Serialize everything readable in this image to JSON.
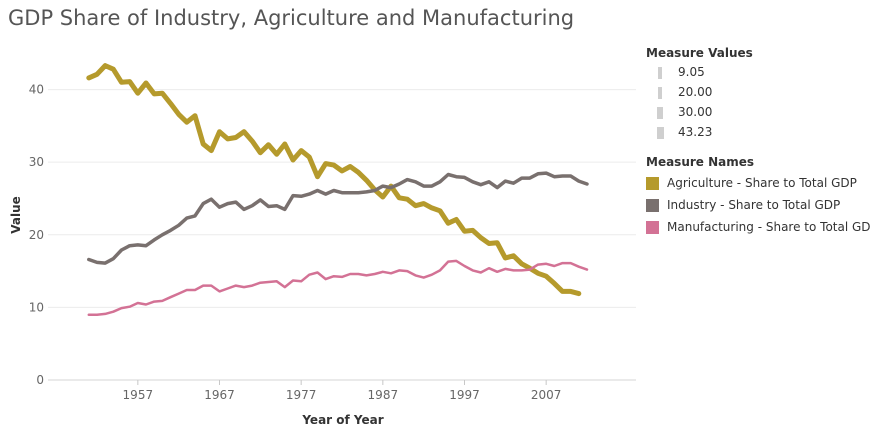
{
  "title": "GDP Share of Industry, Agriculture and Manufacturing",
  "colors": {
    "agriculture": "#b59a2c",
    "industry": "#79706e",
    "manufacturing": "#d37295",
    "axis_text": "#666666",
    "grid": "#ececec"
  },
  "legend_values": {
    "title": "Measure Values",
    "items": [
      "9.05",
      "20.00",
      "30.00",
      "43.23"
    ],
    "levels": [
      9.05,
      20.0,
      30.0,
      43.23
    ]
  },
  "legend_names": {
    "title": "Measure Names",
    "items": [
      {
        "label": "Agriculture - Share to Total GDP",
        "color": "#b59a2c"
      },
      {
        "label": "Industry - Share to Total GDP",
        "color": "#79706e"
      },
      {
        "label": "Manufacturing - Share to Total GDP",
        "color": "#d37295"
      }
    ]
  },
  "chart_data": {
    "type": "line",
    "title": "GDP Share of Industry, Agriculture and Manufacturing",
    "xlabel": "Year of Year",
    "ylabel": "Value",
    "xlim": [
      1946,
      2018
    ],
    "ylim": [
      0,
      46
    ],
    "xticks": [
      1957,
      1967,
      1977,
      1987,
      1997,
      2007
    ],
    "yticks": [
      0,
      10,
      20,
      30,
      40
    ],
    "x": [
      1951,
      1952,
      1953,
      1954,
      1955,
      1956,
      1957,
      1958,
      1959,
      1960,
      1961,
      1962,
      1963,
      1964,
      1965,
      1966,
      1967,
      1968,
      1969,
      1970,
      1971,
      1972,
      1973,
      1974,
      1975,
      1976,
      1977,
      1978,
      1979,
      1980,
      1981,
      1982,
      1983,
      1984,
      1985,
      1986,
      1987,
      1988,
      1989,
      1990,
      1991,
      1992,
      1993,
      1994,
      1995,
      1996,
      1997,
      1998,
      1999,
      2000,
      2001,
      2002,
      2003,
      2004,
      2005,
      2006,
      2007,
      2008,
      2009,
      2010,
      2011,
      2012
    ],
    "series": [
      {
        "name": "Agriculture - Share to Total GDP",
        "color": "#b59a2c",
        "width": 5,
        "values": [
          41.6,
          42.1,
          43.3,
          42.8,
          41.0,
          41.1,
          39.5,
          40.9,
          39.4,
          39.5,
          38.1,
          36.6,
          35.5,
          36.4,
          32.5,
          31.6,
          34.2,
          33.2,
          33.4,
          34.2,
          32.9,
          31.3,
          32.4,
          31.1,
          32.5,
          30.3,
          31.6,
          30.7,
          28.0,
          29.8,
          29.6,
          28.8,
          29.4,
          28.6,
          27.5,
          26.2,
          25.2,
          26.7,
          25.1,
          24.9,
          24.0,
          24.3,
          23.7,
          23.3,
          21.6,
          22.1,
          20.5,
          20.6,
          19.6,
          18.8,
          18.9,
          16.8,
          17.1,
          16.0,
          15.4,
          14.7,
          14.3,
          13.3,
          12.2,
          12.2,
          11.9,
          null
        ]
      },
      {
        "name": "Industry - Share to Total GDP",
        "color": "#79706e",
        "width": 3.5,
        "values": [
          16.6,
          16.2,
          16.1,
          16.7,
          17.9,
          18.5,
          18.6,
          18.5,
          19.3,
          20.0,
          20.6,
          21.3,
          22.3,
          22.6,
          24.3,
          24.9,
          23.8,
          24.3,
          24.5,
          23.5,
          24.0,
          24.8,
          23.9,
          24.0,
          23.5,
          25.4,
          25.3,
          25.6,
          26.1,
          25.6,
          26.1,
          25.8,
          25.8,
          25.8,
          25.9,
          26.1,
          26.7,
          26.5,
          27.0,
          27.6,
          27.3,
          26.7,
          26.7,
          27.3,
          28.3,
          28.0,
          27.9,
          27.3,
          26.9,
          27.3,
          26.5,
          27.4,
          27.1,
          27.8,
          27.8,
          28.4,
          28.5,
          28.0,
          28.1,
          28.1,
          27.4,
          27.0
        ]
      },
      {
        "name": "Manufacturing - Share to Total GDP",
        "color": "#d37295",
        "width": 2.5,
        "values": [
          9.0,
          9.0,
          9.1,
          9.4,
          9.9,
          10.1,
          10.6,
          10.4,
          10.8,
          10.9,
          11.4,
          11.9,
          12.4,
          12.4,
          13.0,
          13.0,
          12.2,
          12.6,
          13.0,
          12.8,
          13.0,
          13.4,
          13.5,
          13.6,
          12.8,
          13.7,
          13.6,
          14.5,
          14.8,
          13.9,
          14.3,
          14.2,
          14.6,
          14.6,
          14.4,
          14.6,
          14.9,
          14.7,
          15.1,
          15.0,
          14.4,
          14.1,
          14.5,
          15.1,
          16.3,
          16.4,
          15.7,
          15.1,
          14.8,
          15.4,
          14.9,
          15.3,
          15.1,
          15.1,
          15.2,
          15.9,
          16.0,
          15.7,
          16.1,
          16.1,
          15.6,
          15.2
        ]
      }
    ]
  }
}
